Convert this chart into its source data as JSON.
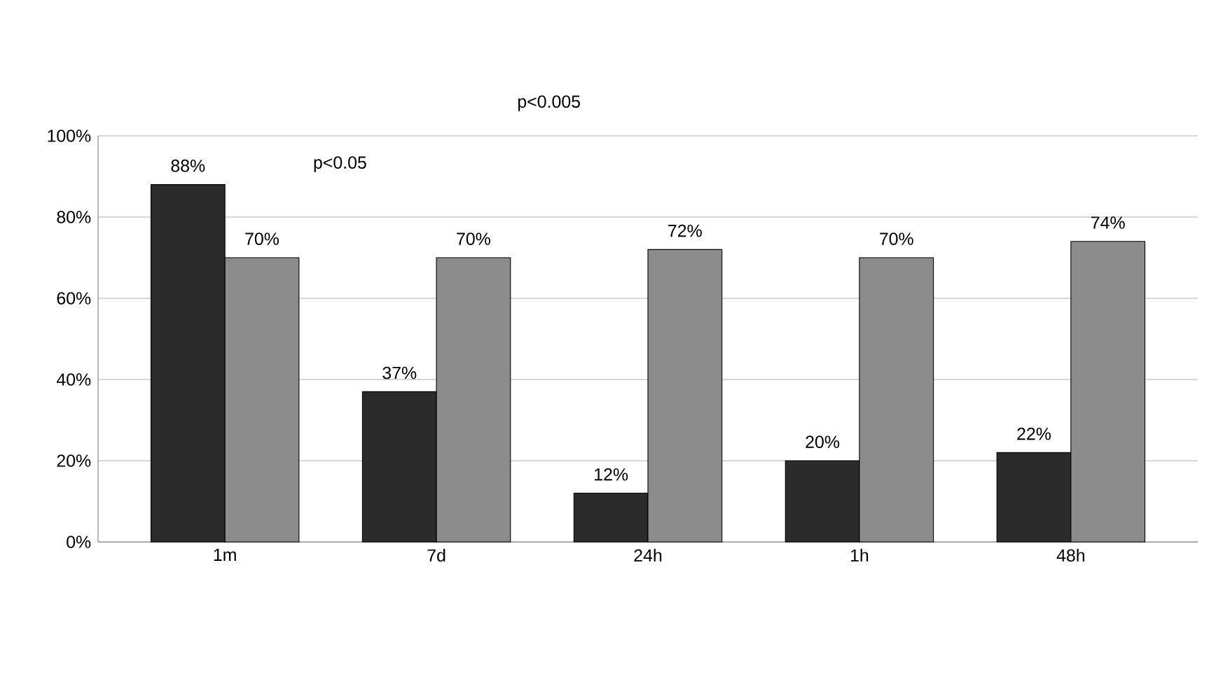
{
  "chart_data": {
    "type": "bar",
    "categories": [
      "1m",
      "7d",
      "24h",
      "1h",
      "48h"
    ],
    "series": [
      {
        "color": "#2b2b2b",
        "values": [
          88,
          37,
          12,
          20,
          22
        ],
        "value_labels": [
          "88%",
          "37%",
          "12%",
          "20%",
          "22%"
        ]
      },
      {
        "color": "#8c8c8c",
        "values": [
          70,
          70,
          72,
          70,
          74
        ],
        "value_labels": [
          "70%",
          "70%",
          "72%",
          "70%",
          "74%"
        ]
      }
    ],
    "ylim": [
      0,
      100
    ],
    "yticks": [
      {
        "value": 0,
        "label": "0%"
      },
      {
        "value": 20,
        "label": "20%"
      },
      {
        "value": 40,
        "label": "40%"
      },
      {
        "value": 60,
        "label": "60%"
      },
      {
        "value": 80,
        "label": "80%"
      },
      {
        "value": 100,
        "label": "100%"
      }
    ],
    "grid": "y",
    "annotations": [
      "p<0.05",
      "p<0.005"
    ]
  }
}
